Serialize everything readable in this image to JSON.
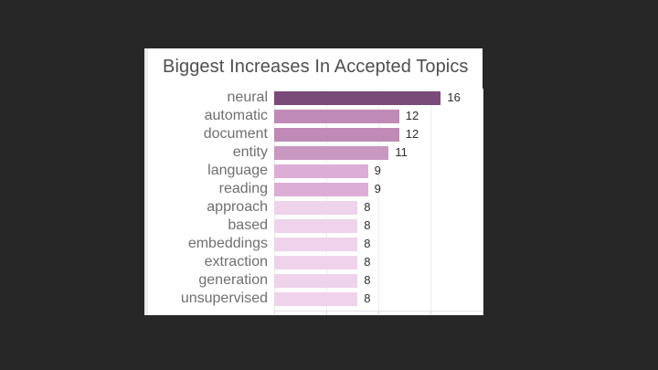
{
  "page": {
    "background_color": "#272727",
    "card_background": "#ffffff"
  },
  "chart_data": {
    "type": "bar",
    "orientation": "horizontal",
    "title": "Biggest Increases In Accepted Topics",
    "categories": [
      "neural",
      "automatic",
      "document",
      "entity",
      "language",
      "reading",
      "approach",
      "based",
      "embeddings",
      "extraction",
      "generation",
      "unsupervised"
    ],
    "values": [
      16,
      12,
      12,
      11,
      9,
      9,
      8,
      8,
      8,
      8,
      8,
      8
    ],
    "bar_colors": [
      "#7a4a78",
      "#bf8ab5",
      "#bf8ab5",
      "#c997c0",
      "#dcaed6",
      "#dcaed6",
      "#eed3ea",
      "#eed3ea",
      "#eed3ea",
      "#eed3ea",
      "#eed3ea",
      "#eed3ea"
    ],
    "value_labels": [
      "16",
      "12",
      "12",
      "11",
      "9",
      "9",
      "8",
      "8",
      "8",
      "8",
      "8",
      "8"
    ],
    "xlabel": "",
    "ylabel": "",
    "xlim": [
      0,
      20
    ],
    "gridline_values": [
      0,
      5,
      10,
      15,
      20
    ],
    "grid": true,
    "legend_position": "none",
    "title_color": "#4f4f4f",
    "label_color": "#6f6f6f",
    "value_label_color": "#2e2e2e",
    "gridline_color": "#ededed",
    "axis_line_color": "#e4e4e4"
  }
}
